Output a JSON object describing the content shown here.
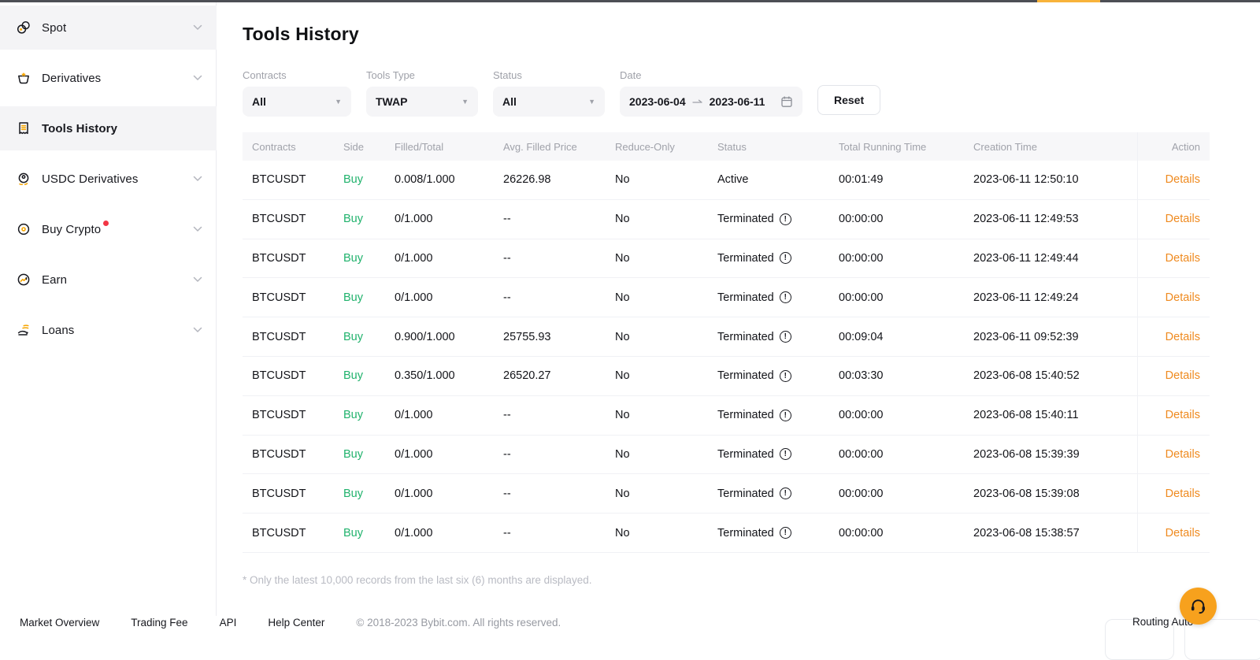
{
  "topbar": {
    "progress_color": "#f8b33a"
  },
  "sidebar": {
    "items": [
      {
        "label": "Spot",
        "icon": "spot-icon",
        "chevron": true,
        "highlighted": true,
        "active": false,
        "badge": false
      },
      {
        "label": "Derivatives",
        "icon": "derivatives-icon",
        "chevron": true,
        "highlighted": false,
        "active": false,
        "badge": false
      },
      {
        "label": "Tools History",
        "icon": "tools-history-icon",
        "chevron": false,
        "highlighted": true,
        "active": true,
        "badge": false
      },
      {
        "label": "USDC Derivatives",
        "icon": "usdc-derivatives-icon",
        "chevron": true,
        "highlighted": false,
        "active": false,
        "badge": false
      },
      {
        "label": "Buy Crypto",
        "icon": "buy-crypto-icon",
        "chevron": true,
        "highlighted": false,
        "active": false,
        "badge": true
      },
      {
        "label": "Earn",
        "icon": "earn-icon",
        "chevron": true,
        "highlighted": false,
        "active": false,
        "badge": false
      },
      {
        "label": "Loans",
        "icon": "loans-icon",
        "chevron": true,
        "highlighted": false,
        "active": false,
        "badge": false
      }
    ]
  },
  "page": {
    "title": "Tools History"
  },
  "filters": {
    "contracts": {
      "label": "Contracts",
      "value": "All"
    },
    "tools_type": {
      "label": "Tools Type",
      "value": "TWAP"
    },
    "status": {
      "label": "Status",
      "value": "All"
    },
    "date": {
      "label": "Date",
      "from": "2023-06-04",
      "to": "2023-06-11"
    },
    "reset_label": "Reset"
  },
  "table": {
    "columns": [
      "Contracts",
      "Side",
      "Filled/Total",
      "Avg. Filled Price",
      "Reduce-Only",
      "Status",
      "Total Running Time",
      "Creation Time",
      "Action"
    ],
    "rows": [
      {
        "contracts": "BTCUSDT",
        "side": "Buy",
        "filled_total": "0.008/1.000",
        "avg_filled_price": "26226.98",
        "reduce_only": "No",
        "status": "Active",
        "status_info": false,
        "total_running_time": "00:01:49",
        "creation_time": "2023-06-11 12:50:10",
        "action": "Details"
      },
      {
        "contracts": "BTCUSDT",
        "side": "Buy",
        "filled_total": "0/1.000",
        "avg_filled_price": "--",
        "reduce_only": "No",
        "status": "Terminated",
        "status_info": true,
        "total_running_time": "00:00:00",
        "creation_time": "2023-06-11 12:49:53",
        "action": "Details"
      },
      {
        "contracts": "BTCUSDT",
        "side": "Buy",
        "filled_total": "0/1.000",
        "avg_filled_price": "--",
        "reduce_only": "No",
        "status": "Terminated",
        "status_info": true,
        "total_running_time": "00:00:00",
        "creation_time": "2023-06-11 12:49:44",
        "action": "Details"
      },
      {
        "contracts": "BTCUSDT",
        "side": "Buy",
        "filled_total": "0/1.000",
        "avg_filled_price": "--",
        "reduce_only": "No",
        "status": "Terminated",
        "status_info": true,
        "total_running_time": "00:00:00",
        "creation_time": "2023-06-11 12:49:24",
        "action": "Details"
      },
      {
        "contracts": "BTCUSDT",
        "side": "Buy",
        "filled_total": "0.900/1.000",
        "avg_filled_price": "25755.93",
        "reduce_only": "No",
        "status": "Terminated",
        "status_info": true,
        "total_running_time": "00:09:04",
        "creation_time": "2023-06-11 09:52:39",
        "action": "Details"
      },
      {
        "contracts": "BTCUSDT",
        "side": "Buy",
        "filled_total": "0.350/1.000",
        "avg_filled_price": "26520.27",
        "reduce_only": "No",
        "status": "Terminated",
        "status_info": true,
        "total_running_time": "00:03:30",
        "creation_time": "2023-06-08 15:40:52",
        "action": "Details"
      },
      {
        "contracts": "BTCUSDT",
        "side": "Buy",
        "filled_total": "0/1.000",
        "avg_filled_price": "--",
        "reduce_only": "No",
        "status": "Terminated",
        "status_info": true,
        "total_running_time": "00:00:00",
        "creation_time": "2023-06-08 15:40:11",
        "action": "Details"
      },
      {
        "contracts": "BTCUSDT",
        "side": "Buy",
        "filled_total": "0/1.000",
        "avg_filled_price": "--",
        "reduce_only": "No",
        "status": "Terminated",
        "status_info": true,
        "total_running_time": "00:00:00",
        "creation_time": "2023-06-08 15:39:39",
        "action": "Details"
      },
      {
        "contracts": "BTCUSDT",
        "side": "Buy",
        "filled_total": "0/1.000",
        "avg_filled_price": "--",
        "reduce_only": "No",
        "status": "Terminated",
        "status_info": true,
        "total_running_time": "00:00:00",
        "creation_time": "2023-06-08 15:39:08",
        "action": "Details"
      },
      {
        "contracts": "BTCUSDT",
        "side": "Buy",
        "filled_total": "0/1.000",
        "avg_filled_price": "--",
        "reduce_only": "No",
        "status": "Terminated",
        "status_info": true,
        "total_running_time": "00:00:00",
        "creation_time": "2023-06-08 15:38:57",
        "action": "Details"
      }
    ],
    "footnote": "* Only the latest 10,000 records from the last six (6) months are displayed."
  },
  "footer": {
    "links": [
      "Market Overview",
      "Trading Fee",
      "API",
      "Help Center"
    ],
    "copyright": "© 2018-2023 Bybit.com. All rights reserved."
  },
  "floating": {
    "routing_label": "Routing Auto"
  },
  "colors": {
    "buy_green": "#20b26c",
    "link_orange": "#ef8a1f",
    "accent_orange": "#f7a600",
    "fab_orange": "#f7a11d"
  }
}
